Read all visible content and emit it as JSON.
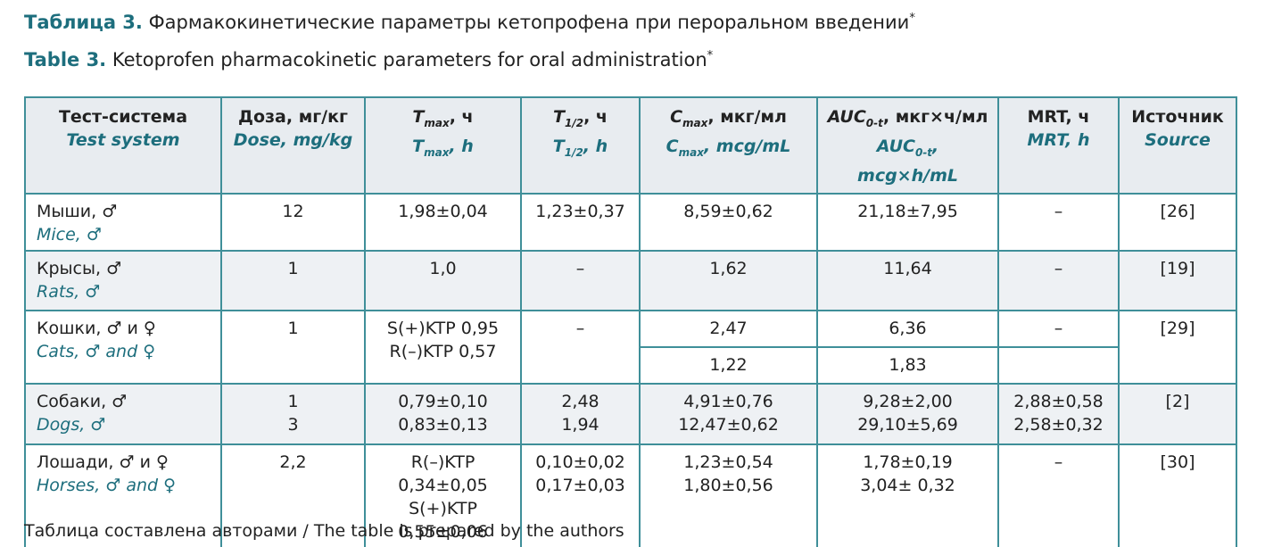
{
  "title_ru": {
    "label": "Таблица 3.",
    "text": "Фармакокинетические параметры кетопрофена при пероральном введении",
    "mark": "*"
  },
  "title_en": {
    "label": "Table 3.",
    "text": "Ketoprofen pharmacokinetic parameters for oral administration",
    "mark": "*"
  },
  "table": {
    "header": [
      {
        "ru": [
          "Тест-система"
        ],
        "en": [
          "Test system"
        ]
      },
      {
        "ru": [
          "Доза, мг/кг"
        ],
        "en": [
          "Dose, mg/kg"
        ]
      },
      {
        "ru": [
          "T",
          "max",
          ", ч"
        ],
        "en": [
          "T",
          "max",
          ", h"
        ]
      },
      {
        "ru": [
          "T",
          "1/2",
          ", ч"
        ],
        "en": [
          "T",
          "1/2",
          ", h"
        ]
      },
      {
        "ru": [
          "C",
          "max",
          ", мкг/мл"
        ],
        "en": [
          "C",
          "max",
          ", mcg/mL"
        ]
      },
      {
        "ru": [
          "AUC",
          "0-t",
          ", мкг×ч/мл"
        ],
        "en": [
          "AUC",
          "0-t",
          ", mcg×h/mL"
        ]
      },
      {
        "ru": [
          "MRT, ч"
        ],
        "en": [
          "MRT, h"
        ]
      },
      {
        "ru": [
          "Источник"
        ],
        "en": [
          "Source"
        ]
      }
    ],
    "rows": [
      {
        "ru": "Мыши, ♂",
        "en": "Mice, ♂",
        "cells": [
          [
            "12"
          ],
          [
            "1,98±0,04"
          ],
          [
            "1,23±0,37"
          ],
          [
            "8,59±0,62"
          ],
          [
            "21,18±7,95"
          ],
          [
            "–"
          ],
          [
            "[26]"
          ]
        ]
      },
      {
        "ru": "Крысы, ♂",
        "en": "Rats, ♂",
        "cells": [
          [
            "1"
          ],
          [
            "1,0"
          ],
          [
            "–"
          ],
          [
            "1,62"
          ],
          [
            "11,64"
          ],
          [
            "–"
          ],
          [
            "[19]"
          ]
        ]
      },
      {
        "ru": "Кошки, ♂ и ♀",
        "en": "Cats, ♂ and ♀",
        "cells": [
          [
            "1"
          ],
          [
            "S(+)KTP 0,95",
            "R(–)KTP 0,57"
          ],
          [
            "–"
          ],
          [
            "2,47",
            "1,22"
          ],
          [
            "6,36",
            "1,83"
          ],
          [
            "–"
          ],
          [
            "[29]"
          ]
        ]
      },
      {
        "ru": "Собаки, ♂",
        "en": "Dogs, ♂",
        "cells": [
          [
            "1",
            "3"
          ],
          [
            "0,79±0,10",
            "0,83±0,13"
          ],
          [
            "2,48",
            "1,94"
          ],
          [
            "4,91±0,76",
            "12,47±0,62"
          ],
          [
            "9,28±2,00",
            "29,10±5,69"
          ],
          [
            "2,88±0,58",
            "2,58±0,32"
          ],
          [
            "[2]"
          ]
        ]
      },
      {
        "ru": "Лошади, ♂ и ♀",
        "en": "Horses, ♂ and ♀",
        "cells": [
          [
            "2,2"
          ],
          [
            "R(–)KTP",
            "0,34±0,05",
            "S(+)KTP",
            "0,55±0,06"
          ],
          [
            "0,10±0,02",
            "0,17±0,03"
          ],
          [
            "1,23±0,54",
            "1,80±0,56"
          ],
          [
            "1,78±0,19",
            "3,04± 0,32"
          ],
          [
            "–"
          ],
          [
            "[30]"
          ]
        ]
      }
    ]
  },
  "footer": "Таблица составлена авторами / The table is prepared by the authors"
}
